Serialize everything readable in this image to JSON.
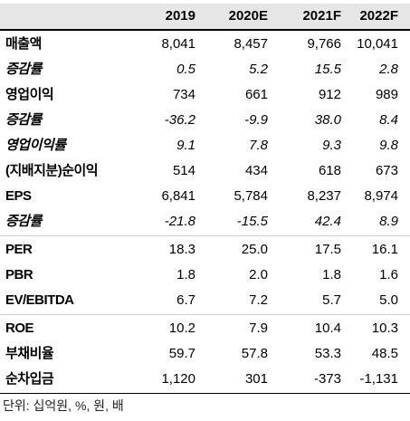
{
  "headers": [
    "2019",
    "2020E",
    "2021F",
    "2022F"
  ],
  "rows": [
    {
      "label": "매출액",
      "values": [
        "8,041",
        "8,457",
        "9,766",
        "10,041"
      ],
      "italic": false
    },
    {
      "label": "증감률",
      "values": [
        "0.5",
        "5.2",
        "15.5",
        "2.8"
      ],
      "italic": true
    },
    {
      "label": "영업이익",
      "values": [
        "734",
        "661",
        "912",
        "989"
      ],
      "italic": false
    },
    {
      "label": "증감률",
      "values": [
        "-36.2",
        "-9.9",
        "38.0",
        "8.4"
      ],
      "italic": true
    },
    {
      "label": "영업이익률",
      "values": [
        "9.1",
        "7.8",
        "9.3",
        "9.8"
      ],
      "italic": true
    },
    {
      "label": "(지배지분)순이익",
      "values": [
        "514",
        "434",
        "618",
        "673"
      ],
      "italic": false
    },
    {
      "label": "EPS",
      "values": [
        "6,841",
        "5,784",
        "8,237",
        "8,974"
      ],
      "italic": false
    },
    {
      "label": "증감률",
      "values": [
        "-21.8",
        "-15.5",
        "42.4",
        "8.9"
      ],
      "italic": true
    },
    {
      "label": "PER",
      "values": [
        "18.3",
        "25.0",
        "17.5",
        "16.1"
      ],
      "italic": false
    },
    {
      "label": "PBR",
      "values": [
        "1.8",
        "2.0",
        "1.8",
        "1.6"
      ],
      "italic": false
    },
    {
      "label": "EV/EBITDA",
      "values": [
        "6.7",
        "7.2",
        "5.7",
        "5.0"
      ],
      "italic": false
    },
    {
      "label": "ROE",
      "values": [
        "10.2",
        "7.9",
        "10.4",
        "10.3"
      ],
      "italic": false
    },
    {
      "label": "부채비율",
      "values": [
        "59.7",
        "57.8",
        "53.3",
        "48.5"
      ],
      "italic": false
    },
    {
      "label": "순차입금",
      "values": [
        "1,120",
        "301",
        "-373",
        "-1,131"
      ],
      "italic": false
    }
  ],
  "unit_note": "단위: 십억원, %, 원, 배"
}
